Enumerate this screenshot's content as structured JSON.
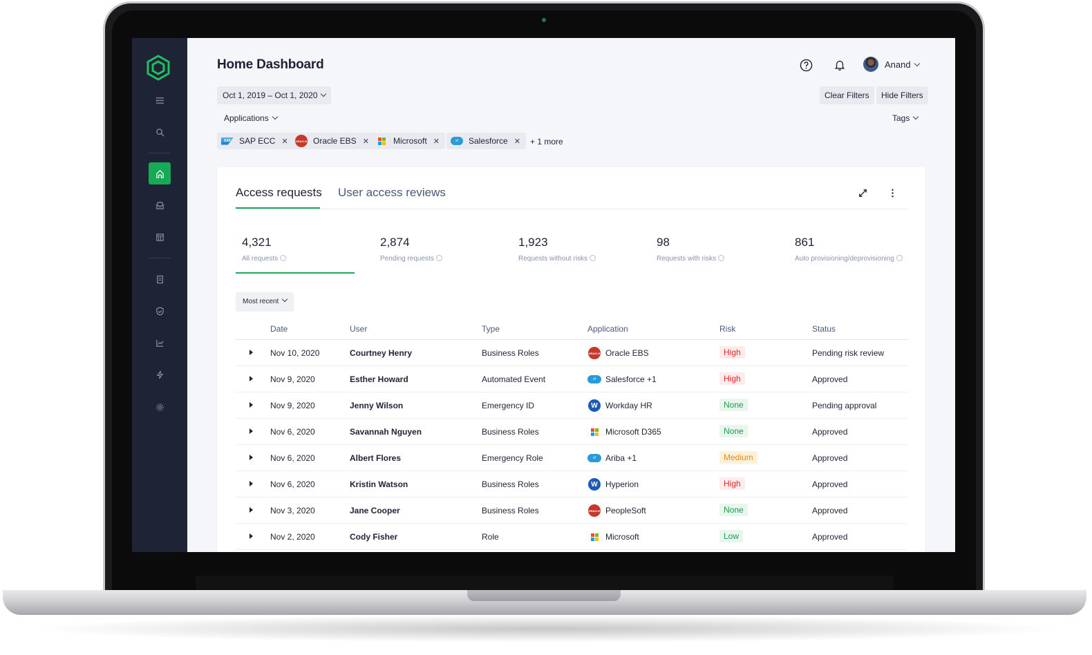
{
  "header": {
    "title": "Home Dashboard",
    "user_name": "Anand"
  },
  "filters": {
    "date_range": "Oct 1, 2019 – Oct 1, 2020",
    "clear_label": "Clear Filters",
    "hide_label": "Hide Filters",
    "applications_label": "Applications",
    "tags_label": "Tags",
    "chips": [
      {
        "label": "SAP ECC",
        "logo": "sap-logo"
      },
      {
        "label": "Oracle EBS",
        "logo": "oracle-logo"
      },
      {
        "label": "Microsoft",
        "logo": "microsoft-logo"
      },
      {
        "label": "Salesforce",
        "logo": "salesforce-logo"
      }
    ],
    "more": "+ 1 more"
  },
  "tabs": [
    {
      "label": "Access requests",
      "active": true
    },
    {
      "label": "User access reviews",
      "active": false
    }
  ],
  "stats": [
    {
      "value": "4,321",
      "label": "All requests"
    },
    {
      "value": "2,874",
      "label": "Pending requests"
    },
    {
      "value": "1,923",
      "label": "Requests without risks"
    },
    {
      "value": "98",
      "label": "Requests with risks"
    },
    {
      "value": "861",
      "label": "Auto provisioning/deprovisioning"
    }
  ],
  "sort_label": "Most recent",
  "table": {
    "headers": [
      "Date",
      "User",
      "Type",
      "Application",
      "Risk",
      "Status"
    ],
    "rows": [
      {
        "date": "Nov 10, 2020",
        "user": "Courtney Henry",
        "type": "Business Roles",
        "app": "Oracle EBS",
        "logo": "oracle-logo",
        "risk": "High",
        "status": "Pending risk review"
      },
      {
        "date": "Nov 9, 2020",
        "user": "Esther Howard",
        "type": "Automated Event",
        "app": "Salesforce +1",
        "logo": "salesforce-logo",
        "risk": "High",
        "status": "Approved"
      },
      {
        "date": "Nov 9, 2020",
        "user": "Jenny Wilson",
        "type": "Emergency ID",
        "app": "Workday HR",
        "logo": "workday-logo",
        "risk": "None",
        "status": "Pending approval"
      },
      {
        "date": "Nov 6, 2020",
        "user": "Savannah Nguyen",
        "type": "Business Roles",
        "app": "Microsoft D365",
        "logo": "microsoft-logo",
        "risk": "None",
        "status": "Approved"
      },
      {
        "date": "Nov 6, 2020",
        "user": "Albert Flores",
        "type": "Emergency Role",
        "app": "Ariba +1",
        "logo": "salesforce-logo",
        "risk": "Medium",
        "status": "Approved"
      },
      {
        "date": "Nov 6, 2020",
        "user": "Kristin Watson",
        "type": "Business Roles",
        "app": "Hyperion",
        "logo": "workday-logo",
        "risk": "High",
        "status": "Approved"
      },
      {
        "date": "Nov 3, 2020",
        "user": "Jane Cooper",
        "type": "Business Roles",
        "app": "PeopleSoft",
        "logo": "oracle-logo",
        "risk": "None",
        "status": "Approved"
      },
      {
        "date": "Nov 2, 2020",
        "user": "Cody Fisher",
        "type": "Role",
        "app": "Microsoft",
        "logo": "microsoft-logo",
        "risk": "Low",
        "status": "Approved"
      }
    ]
  },
  "risk_colors": {
    "High": {
      "fg": "#e0262e",
      "bg": "#fdecec"
    },
    "None": {
      "fg": "#1a9c4a",
      "bg": "#e8f6ee"
    },
    "Medium": {
      "fg": "#e88a0c",
      "bg": "#fdf1dc"
    },
    "Low": {
      "fg": "#1a9c4a",
      "bg": "#e8f6ee"
    }
  },
  "colors": {
    "accent": "#18a957",
    "sidebar": "#1e2436"
  },
  "sidebar_icons": [
    "menu-icon",
    "search-icon",
    "home-icon",
    "inbox-icon",
    "calendar-icon",
    "report-icon",
    "shield-icon",
    "chart-icon",
    "lightning-icon",
    "gear-icon"
  ]
}
